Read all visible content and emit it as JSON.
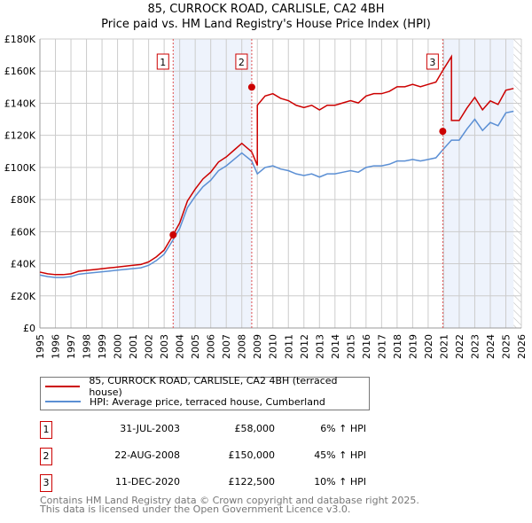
{
  "chart_data": {
    "type": "line",
    "title": "85, CURROCK ROAD, CARLISLE, CA2 4BH",
    "subtitle": "Price paid vs. HM Land Registry's House Price Index (HPI)",
    "xlim": [
      1995,
      2026
    ],
    "ylim": [
      0,
      180000
    ],
    "y_ticks": [
      "£0",
      "£20K",
      "£40K",
      "£60K",
      "£80K",
      "£100K",
      "£120K",
      "£140K",
      "£160K",
      "£180K"
    ],
    "x_ticks": [
      "1995",
      "1996",
      "1997",
      "1998",
      "1999",
      "2000",
      "2001",
      "2002",
      "2003",
      "2004",
      "2005",
      "2006",
      "2007",
      "2008",
      "2009",
      "2010",
      "2011",
      "2012",
      "2013",
      "2014",
      "2015",
      "2016",
      "2017",
      "2018",
      "2019",
      "2020",
      "2021",
      "2022",
      "2023",
      "2024",
      "2025",
      "2026"
    ],
    "grid": true,
    "hpi": {
      "name": "HPI: Average price, terraced house, Cumberland",
      "color": "#5b8fd4",
      "x": [
        1995,
        1995.5,
        1996,
        1996.5,
        1997,
        1997.5,
        1998,
        1998.5,
        1999,
        1999.5,
        2000,
        2000.5,
        2001,
        2001.5,
        2002,
        2002.5,
        2003,
        2003.58,
        2004,
        2004.5,
        2005,
        2005.5,
        2006,
        2006.5,
        2007,
        2007.5,
        2008,
        2008.64,
        2009,
        2009.5,
        2010,
        2010.5,
        2011,
        2011.5,
        2012,
        2012.5,
        2013,
        2013.5,
        2014,
        2014.5,
        2015,
        2015.5,
        2016,
        2016.5,
        2017,
        2017.5,
        2018,
        2018.5,
        2019,
        2019.5,
        2020,
        2020.5,
        2020.94,
        2021.5,
        2022,
        2022.5,
        2023,
        2023.5,
        2024,
        2024.5,
        2025,
        2025.5
      ],
      "y": [
        33000,
        32000,
        31500,
        31500,
        32000,
        33500,
        34000,
        34500,
        35000,
        35500,
        36000,
        36500,
        37000,
        37500,
        39000,
        42000,
        46000,
        55000,
        62000,
        75000,
        82000,
        88000,
        92000,
        98000,
        101000,
        105000,
        109000,
        104000,
        96000,
        100000,
        101000,
        99000,
        98000,
        96000,
        95000,
        96000,
        94000,
        96000,
        96000,
        97000,
        98000,
        97000,
        100000,
        101000,
        101000,
        102000,
        104000,
        104000,
        105000,
        104000,
        105000,
        106000,
        111000,
        117000,
        117000,
        124000,
        130000,
        123000,
        128000,
        126000,
        134000,
        135000
      ]
    },
    "property": {
      "name": "85, CURROCK ROAD, CARLISLE, CA2 4BH (terraced house)",
      "color": "#cc0000",
      "segments": [
        {
          "until": 2003.58,
          "ratio": 1.055
        },
        {
          "until": 2008.64,
          "ratio": 1.055
        },
        {
          "until": 2020.94,
          "ratio": 1.445
        },
        {
          "until": 2026,
          "ratio": 1.105
        }
      ]
    },
    "sales": [
      {
        "id": "1",
        "x": 2003.58,
        "date": "31-JUL-2003",
        "price": 58000,
        "price_label": "£58,000",
        "hpi_label": "6% ↑ HPI"
      },
      {
        "id": "2",
        "x": 2008.64,
        "date": "22-AUG-2008",
        "price": 150000,
        "price_label": "£150,000",
        "hpi_label": "45% ↑ HPI"
      },
      {
        "id": "3",
        "x": 2020.94,
        "date": "11-DEC-2020",
        "price": 122500,
        "price_label": "£122,500",
        "hpi_label": "10% ↑ HPI"
      }
    ],
    "shaded": [
      [
        2003.58,
        2008.64
      ],
      [
        2020.94,
        2025.5
      ]
    ],
    "hatched_from": 2025.5,
    "legend": "bottom"
  },
  "footer": [
    "Contains HM Land Registry data © Crown copyright and database right 2025.",
    "This data is licensed under the Open Government Licence v3.0."
  ]
}
